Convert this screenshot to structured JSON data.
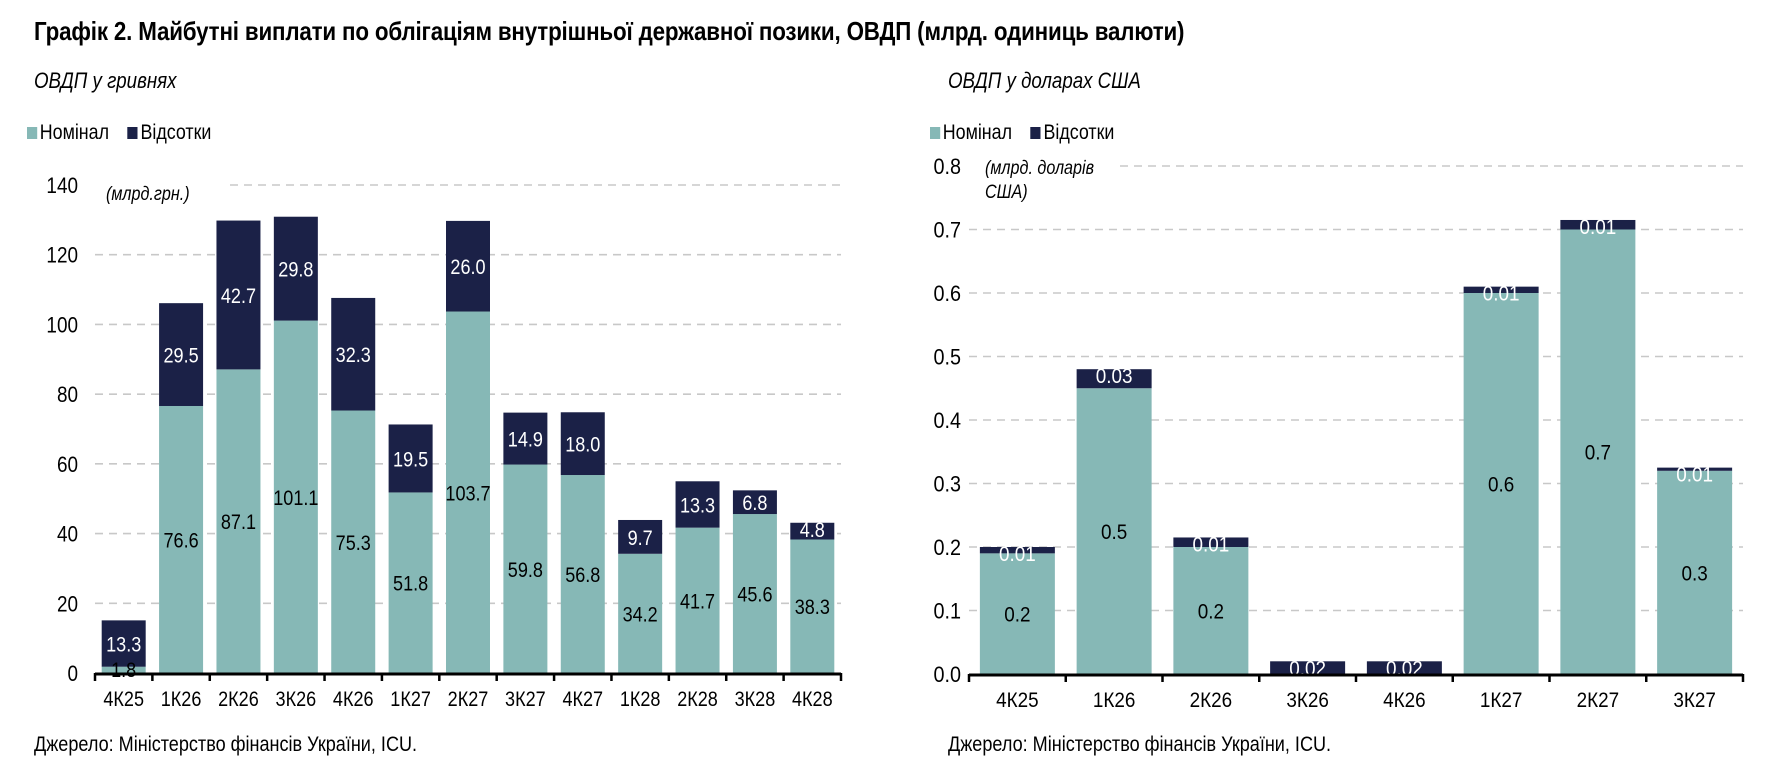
{
  "title": "Графік 2. Майбутні виплати по облігаціям внутрішньої державної позики, ОВДП (млрд. одиниць валюти)",
  "colors": {
    "nominal": "#86b8b6",
    "interest": "#1b2147",
    "grid": "#c8c8c8",
    "axis": "#000000"
  },
  "legend": {
    "nominal": "Номінал",
    "interest": "Відсотки"
  },
  "source": "Джерело: Міністерство фінансів України, ICU.",
  "chart_data": [
    {
      "type": "bar",
      "stacked": true,
      "title": "ОВДП у гривнях",
      "unit_label": "(млрд.грн.)",
      "xlabel": "",
      "ylabel": "",
      "ylim": [
        0,
        140
      ],
      "yticks": [
        0,
        20,
        40,
        60,
        80,
        100,
        120,
        140
      ],
      "ytick_labels": [
        "0",
        "20",
        "40",
        "60",
        "80",
        "100",
        "120",
        "140"
      ],
      "grid": true,
      "legend_position": "top-left",
      "categories": [
        "4К25",
        "1К26",
        "2К26",
        "3К26",
        "4К26",
        "1К27",
        "2К27",
        "3К27",
        "4К27",
        "1К28",
        "2К28",
        "3К28",
        "4К28"
      ],
      "series": [
        {
          "name": "Номінал",
          "color": "#86b8b6",
          "values": [
            1.8,
            76.6,
            87.1,
            101.1,
            75.3,
            51.8,
            103.7,
            59.8,
            56.8,
            34.2,
            41.7,
            45.6,
            38.3
          ],
          "labels": [
            "1.8",
            "76.6",
            "87.1",
            "101.1",
            "75.3",
            "51.8",
            "103.7",
            "59.8",
            "56.8",
            "34.2",
            "41.7",
            "45.6",
            "38.3"
          ]
        },
        {
          "name": "Відсотки",
          "color": "#1b2147",
          "values": [
            13.3,
            29.5,
            42.7,
            29.8,
            32.3,
            19.5,
            26.0,
            14.9,
            18.0,
            9.7,
            13.3,
            6.8,
            4.8
          ],
          "labels": [
            "13.3",
            "29.5",
            "42.7",
            "29.8",
            "32.3",
            "19.5",
            "26.0",
            "14.9",
            "18.0",
            "9.7",
            "13.3",
            "6.8",
            "4.8"
          ]
        }
      ]
    },
    {
      "type": "bar",
      "stacked": true,
      "title": "ОВДП у доларах США",
      "unit_label": [
        "(млрд. доларів",
        "США)"
      ],
      "xlabel": "",
      "ylabel": "",
      "ylim": [
        0,
        0.8
      ],
      "yticks": [
        0,
        0.1,
        0.2,
        0.3,
        0.4,
        0.5,
        0.6,
        0.7,
        0.8
      ],
      "ytick_labels": [
        "0.0",
        "0.1",
        "0.2",
        "0.3",
        "0.4",
        "0.5",
        "0.6",
        "0.7",
        "0.8"
      ],
      "grid": true,
      "legend_position": "top-left",
      "categories": [
        "4К25",
        "1К26",
        "2К26",
        "3К26",
        "4К26",
        "1К27",
        "2К27",
        "3К27"
      ],
      "series": [
        {
          "name": "Номінал",
          "color": "#86b8b6",
          "values": [
            0.19,
            0.45,
            0.2,
            0,
            0,
            0.6,
            0.7,
            0.32
          ],
          "labels": [
            "0.2",
            "0.5",
            "0.2",
            "",
            "",
            "0.6",
            "0.7",
            "0.3"
          ]
        },
        {
          "name": "Відсотки",
          "color": "#1b2147",
          "values": [
            0.01,
            0.03,
            0.015,
            0.02,
            0.02,
            0.01,
            0.015,
            0.005
          ],
          "labels": [
            "0.01",
            "0.03",
            "0.01",
            "0.02",
            "0.02",
            "0.01",
            "0.01",
            "0.01"
          ]
        }
      ]
    }
  ]
}
